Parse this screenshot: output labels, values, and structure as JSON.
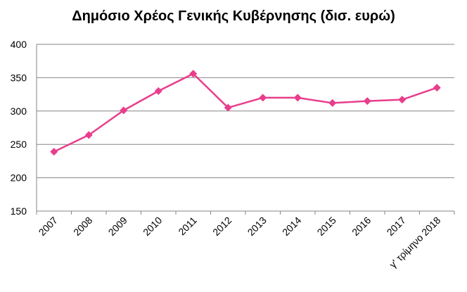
{
  "chart_data": {
    "type": "line",
    "title": "Δημόσιο Χρέος Γενικής Κυβέρνησης (δισ.  ευρώ)",
    "xlabel": "",
    "ylabel": "",
    "categories": [
      "2007",
      "2008",
      "2009",
      "2010",
      "2011",
      "2012",
      "2013",
      "2014",
      "2015",
      "2016",
      "2017",
      "γ' τρίμηνο 2018"
    ],
    "series": [
      {
        "values": [
          239,
          264,
          301,
          330,
          356,
          305,
          320,
          320,
          312,
          315,
          317,
          335
        ]
      }
    ],
    "ylim": [
      150,
      400
    ],
    "yticks": [
      150,
      200,
      250,
      300,
      350,
      400
    ],
    "grid": true,
    "legend": "none",
    "colors": {
      "series": "#e83e8c",
      "grid": "#868686",
      "axis": "#868686"
    }
  }
}
